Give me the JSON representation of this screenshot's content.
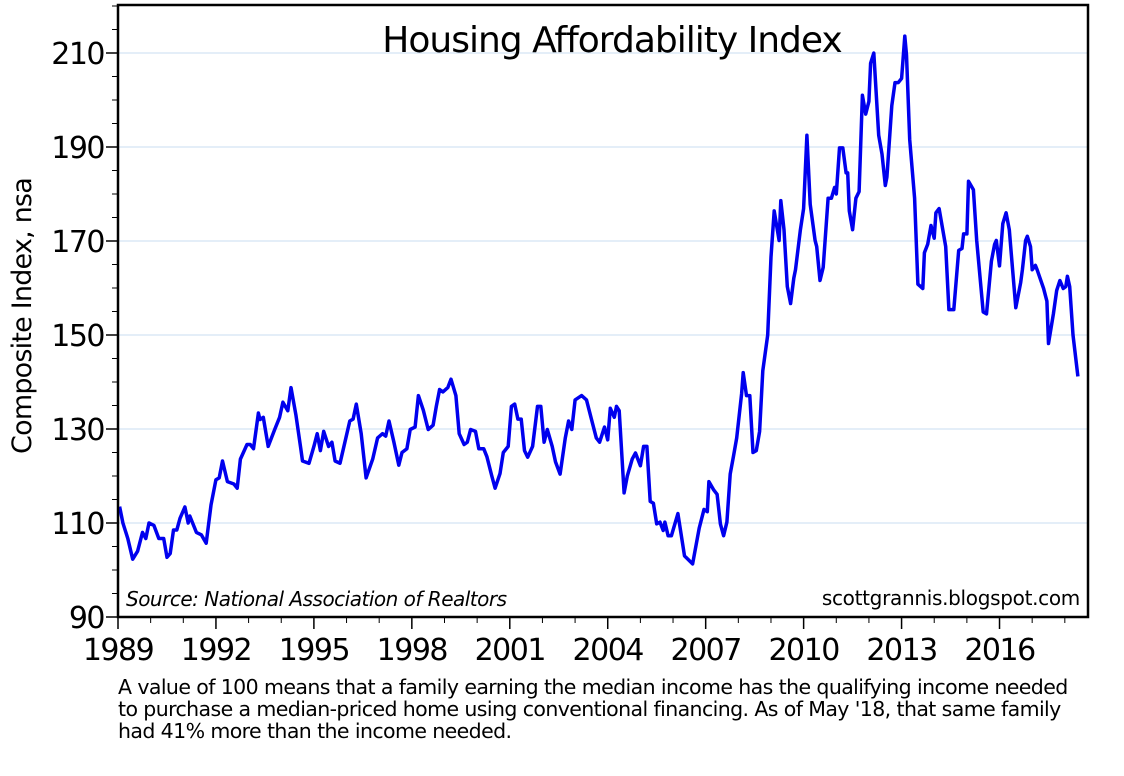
{
  "chart_data": {
    "type": "line",
    "title": "Housing Affordability Index",
    "xlabel": "",
    "ylabel": "Composite Index, nsa",
    "source_note": "Source: National Association of Realtors",
    "watermark": "scottgrannis.blogspot.com",
    "xlim": [
      1989,
      2018.71
    ],
    "ylim": [
      90,
      220
    ],
    "x_ticks": [
      1989,
      1992,
      1995,
      1998,
      2001,
      2004,
      2007,
      2010,
      2013,
      2016
    ],
    "x_tick_labels": [
      "1989",
      "1992",
      "1995",
      "1998",
      "2001",
      "2004",
      "2007",
      "2010",
      "2013",
      "2016"
    ],
    "y_ticks": [
      90,
      110,
      130,
      150,
      170,
      190,
      210
    ],
    "y_tick_labels": [
      "90",
      "110",
      "130",
      "150",
      "170",
      "190",
      "210"
    ],
    "grid": "horizontal",
    "line_color": "#0000ee",
    "grid_color": "#c8dcf0",
    "series": [
      {
        "x": [
          1989.05,
          1989.15,
          1989.3,
          1989.45,
          1989.6,
          1989.75,
          1989.85,
          1989.95,
          1990.1,
          1990.25,
          1990.4,
          1990.5,
          1990.6,
          1990.7,
          1990.8,
          1990.9,
          1991.05,
          1991.15,
          1991.2,
          1991.4,
          1991.55,
          1991.7,
          1991.85,
          1992.0,
          1992.1,
          1992.2,
          1992.35,
          1992.55,
          1992.65,
          1992.75,
          1992.95,
          1993.05,
          1993.15,
          1993.3,
          1993.35,
          1993.45,
          1993.6,
          1993.8,
          1993.95,
          1994.05,
          1994.2,
          1994.3,
          1994.45,
          1994.6,
          1994.65,
          1994.85,
          1995.0,
          1995.1,
          1995.2,
          1995.3,
          1995.45,
          1995.55,
          1995.65,
          1995.8,
          1995.95,
          1996.1,
          1996.2,
          1996.3,
          1996.45,
          1996.6,
          1996.8,
          1996.95,
          1997.1,
          1997.2,
          1997.3,
          1997.45,
          1997.6,
          1997.7,
          1997.85,
          1997.95,
          1998.1,
          1998.2,
          1998.35,
          1998.5,
          1998.65,
          1998.75,
          1998.85,
          1998.95,
          1999.1,
          1999.2,
          1999.35,
          1999.45,
          1999.6,
          1999.7,
          1999.8,
          1999.95,
          2000.05,
          2000.2,
          2000.3,
          2000.45,
          2000.55,
          2000.7,
          2000.8,
          2000.95,
          2001.05,
          2001.15,
          2001.25,
          2001.35,
          2001.45,
          2001.55,
          2001.7,
          2001.85,
          2001.95,
          2002.05,
          2002.15,
          2002.3,
          2002.4,
          2002.54,
          2002.7,
          2002.8,
          2002.9,
          2003.0,
          2003.2,
          2003.35,
          2003.5,
          2003.65,
          2003.75,
          2003.9,
          2004.0,
          2004.08,
          2004.2,
          2004.27,
          2004.35,
          2004.5,
          2004.6,
          2004.75,
          2004.85,
          2005.0,
          2005.1,
          2005.2,
          2005.3,
          2005.4,
          2005.5,
          2005.6,
          2005.7,
          2005.75,
          2005.85,
          2005.95,
          2006.15,
          2006.35,
          2006.6,
          2006.8,
          2006.95,
          2007.05,
          2007.1,
          2007.25,
          2007.35,
          2007.45,
          2007.55,
          2007.65,
          2007.75,
          2007.85,
          2007.95,
          2008.1,
          2008.15,
          2008.25,
          2008.35,
          2008.45,
          2008.55,
          2008.65,
          2008.75,
          2008.9,
          2009.0,
          2009.1,
          2009.25,
          2009.3,
          2009.4,
          2009.5,
          2009.6,
          2009.7,
          2009.75,
          2009.9,
          2010.0,
          2010.1,
          2010.2,
          2010.35,
          2010.4,
          2010.5,
          2010.6,
          2010.75,
          2010.85,
          2010.95,
          2011.0,
          2011.1,
          2011.2,
          2011.3,
          2011.35,
          2011.4,
          2011.5,
          2011.6,
          2011.7,
          2011.8,
          2011.9,
          2012.0,
          2012.05,
          2012.15,
          2012.3,
          2012.4,
          2012.5,
          2012.55,
          2012.7,
          2012.8,
          2012.9,
          2013.0,
          2013.1,
          2013.15,
          2013.25,
          2013.4,
          2013.5,
          2013.65,
          2013.7,
          2013.8,
          2013.9,
          2014.0,
          2014.05,
          2014.15,
          2014.35,
          2014.45,
          2014.6,
          2014.75,
          2014.85,
          2014.9,
          2015.0,
          2015.05,
          2015.2,
          2015.3,
          2015.5,
          2015.6,
          2015.75,
          2015.85,
          2015.9,
          2016.0,
          2016.1,
          2016.2,
          2016.3,
          2016.4,
          2016.5,
          2016.65,
          2016.7,
          2016.8,
          2016.85,
          2016.95,
          2017.0,
          2017.1,
          2017.15,
          2017.35,
          2017.45,
          2017.5,
          2017.65,
          2017.75,
          2017.85,
          2017.95,
          2018.03,
          2018.08,
          2018.15,
          2018.25,
          2018.4
        ],
        "y": [
          113.5,
          110,
          106.7,
          102.3,
          104,
          108,
          106.7,
          110,
          109.5,
          106.7,
          106.7,
          102.7,
          103.5,
          108.5,
          108.5,
          111,
          113.4,
          110,
          111.5,
          108,
          107.5,
          105.7,
          113.8,
          119.2,
          119.6,
          123.2,
          118.8,
          118.3,
          117.4,
          123.6,
          126.7,
          126.7,
          125.8,
          133.4,
          132,
          132.5,
          126.3,
          129.9,
          132.5,
          135.7,
          133.9,
          138.8,
          133,
          125.8,
          123.2,
          122.7,
          126.3,
          129,
          125.4,
          129.5,
          126.3,
          127.2,
          123.2,
          122.7,
          127.2,
          131.7,
          132.1,
          135.3,
          129,
          119.6,
          123.6,
          128.1,
          129,
          128.5,
          131.7,
          127.2,
          122.3,
          125,
          125.8,
          129.9,
          130.4,
          137.1,
          134,
          129.9,
          130.8,
          134.8,
          138.4,
          137.9,
          138.8,
          140.6,
          137.1,
          129,
          126.7,
          127.2,
          129.9,
          129.5,
          125.8,
          125.8,
          124.1,
          120,
          117.4,
          120.5,
          125,
          126.3,
          134.8,
          135.3,
          132.1,
          132.1,
          125.4,
          124,
          126.3,
          134.8,
          134.8,
          127.2,
          129.9,
          126.3,
          123,
          120.4,
          128.1,
          131.7,
          129.9,
          136.2,
          137.1,
          136.2,
          132.1,
          128.1,
          127.2,
          130.4,
          127.7,
          134.4,
          132.5,
          134.8,
          133.9,
          116.4,
          120,
          123.6,
          124.9,
          122.2,
          126.3,
          126.3,
          114.6,
          114.2,
          109.8,
          110.2,
          108.4,
          110.2,
          107.3,
          107.3,
          112,
          103,
          101.3,
          108.9,
          112.9,
          112.4,
          118.8,
          117,
          116.1,
          109.8,
          107.3,
          110.2,
          120.4,
          124.1,
          128.1,
          137.5,
          142,
          137.1,
          137.1,
          125,
          125.4,
          129.5,
          142.4,
          150,
          166.6,
          176.4,
          170.1,
          178.6,
          172.4,
          160.3,
          156.7,
          162.1,
          163.9,
          172.4,
          176.9,
          192.5,
          177.8,
          170.1,
          168.8,
          161.6,
          164.4,
          179.1,
          179.1,
          181.4,
          180,
          189.8,
          189.8,
          184.5,
          184.5,
          176.4,
          172.4,
          179.1,
          180.5,
          201,
          197,
          199.7,
          207.8,
          210,
          192.5,
          188.5,
          181.8,
          183.6,
          198.8,
          203.7,
          203.7,
          204.6,
          213.6,
          209.6,
          191.6,
          179.1,
          160.8,
          159.9,
          167.5,
          169.3,
          173.3,
          170.6,
          176,
          176.9,
          168.8,
          155.4,
          155.4,
          168,
          168.4,
          171.5,
          171.5,
          182.7,
          180.9,
          170.1,
          154.9,
          154.5,
          165.7,
          169.3,
          170.1,
          164.7,
          173.7,
          176,
          172.4,
          163.9,
          155.8,
          161.2,
          163.9,
          170.1,
          171,
          168.8,
          163.9,
          164.8,
          163.9,
          159.9,
          157.2,
          148.2,
          154.5,
          159.5,
          161.6,
          159.9,
          160.3,
          162.5,
          160.3,
          150,
          141.2
        ]
      }
    ]
  },
  "caption": {
    "lines": [
      "A value of 100 means that a family earning the median income has the qualifying income needed",
      "to purchase a median-priced home using conventional financing. As of May '18, that same family",
      "had 41% more than the income needed."
    ]
  }
}
